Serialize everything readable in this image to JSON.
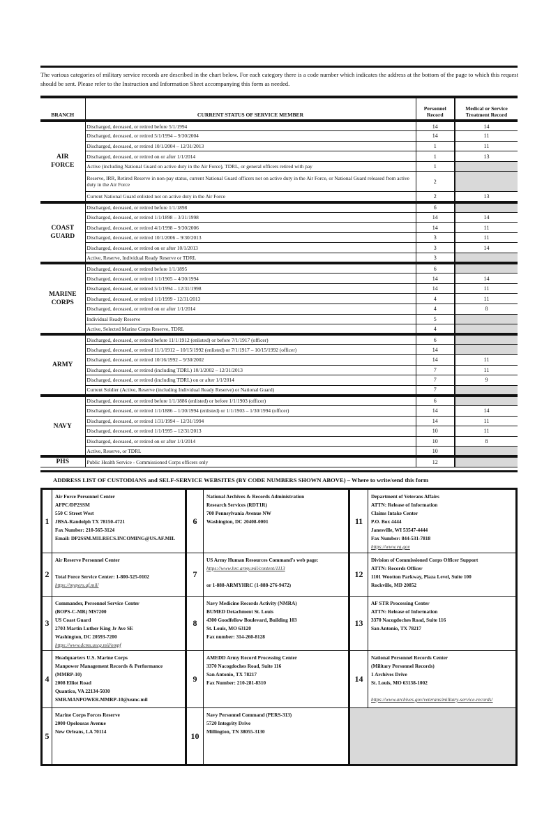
{
  "intro": "The various categories of military service records are described in the chart below.  For each category there is a code number which indicates the address at the bottom of the page to which this request should be sent.  Please refer to the Instruction and Information Sheet accompanying this form as needed.",
  "headers": {
    "branch": "BRANCH",
    "status": "CURRENT STATUS OF SERVICE MEMBER",
    "personnel": "Personnel Record",
    "medical": "Medical or Service Treatment Record"
  },
  "branches": [
    {
      "name": "AIR FORCE",
      "rows": [
        [
          "Discharged, deceased, or retired before 5/1/1994",
          "14",
          "14"
        ],
        [
          "Discharged, deceased, or retired 5/1/1994 – 9/30/2004",
          "14",
          "11"
        ],
        [
          "Discharged, deceased, or retired 10/1/2004 – 12/31/2013",
          "1",
          "11"
        ],
        [
          "Discharged, deceased, or retired on or after 1/1/2014",
          "1",
          "13"
        ],
        [
          "Active (including National Guard on active duty in the Air Force), TDRL, or general officers retired with pay",
          "1",
          ""
        ],
        [
          "Reserve, IRR, Retired Reserve in non-pay status, current National Guard officers not on active duty in the Air Force, or National Guard released from active duty in the Air Force",
          "2",
          ""
        ],
        [
          "Current National Guard enlisted not on active duty in the Air Force",
          "2",
          "13"
        ]
      ]
    },
    {
      "name": "COAST GUARD",
      "rows": [
        [
          "Discharged, deceased, or retired before 1/1/1898",
          "6",
          ""
        ],
        [
          "Discharged, deceased, or retired 1/1/1898 – 3/31/1998",
          "14",
          "14"
        ],
        [
          "Discharged, deceased, or retired 4/1/1998 – 9/30/2006",
          "14",
          "11"
        ],
        [
          "Discharged, deceased, or retired 10/1/2006  – 9/30/2013",
          "3",
          "11"
        ],
        [
          "Discharged, deceased, or retired on or after 10/1/2013",
          "3",
          "14"
        ],
        [
          "Active, Reserve, Individual Ready Reserve or TDRL",
          "3",
          ""
        ]
      ]
    },
    {
      "name": "MARINE CORPS",
      "rows": [
        [
          "Discharged, deceased, or retired before 1/1/1895",
          "6",
          ""
        ],
        [
          "Discharged, deceased, or retired 1/1/1905 – 4/30/1994",
          "14",
          "14"
        ],
        [
          "Discharged, deceased, or retired 5/1/1994 – 12/31/1998",
          "14",
          "11"
        ],
        [
          "Discharged, deceased, or retired 1/1/1999 - 12/31/2013",
          "4",
          "11"
        ],
        [
          "Discharged, deceased, or retired on or after 1/1/2014",
          "4",
          "8"
        ],
        [
          "Individual Ready Reserve",
          "5",
          ""
        ],
        [
          "Active, Selected Marine Corps Reserve, TDRL",
          "4",
          ""
        ]
      ]
    },
    {
      "name": "ARMY",
      "rows": [
        [
          "Discharged, deceased, or retired before 11/1/1912 (enlisted) or before 7/1/1917 (officer)",
          "6",
          ""
        ],
        [
          "Discharged, deceased, or retired 11/1/1912 – 10/15/1992 (enlisted) or 7/1/1917 – 10/15/1992 (officer)",
          "14",
          ""
        ],
        [
          "Discharged, deceased, or retired 10/16/1992 – 9/30/2002",
          "14",
          "11"
        ],
        [
          "Discharged, deceased, or retired (including TDRL) 10/1/2002 – 12/31/2013",
          "7",
          "11"
        ],
        [
          "Discharged, deceased, or retired (including TDRL) on or after 1/1/2014",
          "7",
          "9"
        ],
        [
          "Current Soldier (Active, Reserve (including Individual Ready Reserve) or National Guard)",
          "7",
          ""
        ]
      ]
    },
    {
      "name": "NAVY",
      "rows": [
        [
          "Discharged, deceased, or retired before 1/1/1886 (enlisted) or before 1/1/1903 (officer)",
          "6",
          ""
        ],
        [
          "Discharged, deceased, or retired 1/1/1886 – 1/30/1994 (enlisted) or 1/1/1903 – 1/30/1994 (officer)",
          "14",
          "14"
        ],
        [
          "Discharged, deceased, or retired 1/31/1994 – 12/31/1994",
          "14",
          "11"
        ],
        [
          "Discharged, deceased, or retired 1/1/1995 – 12/31/2013",
          "10",
          "11"
        ],
        [
          "Discharged, deceased, or retired on or after 1/1/2014",
          "10",
          "8"
        ],
        [
          "Active, Reserve, or TDRL",
          "10",
          ""
        ]
      ]
    },
    {
      "name": "PHS",
      "rows": [
        [
          "Public Health Service - Commissioned Corps officers only",
          "12",
          ""
        ]
      ]
    }
  ],
  "address_title": "ADDRESS LIST OF CUSTODIANS and SELF-SERVICE WEBSITES (BY CODE NUMBERS SHOWN ABOVE) – Where to write/send this form",
  "addresses": [
    {
      "code": "1",
      "lines": [
        "Air Force Personnel Center",
        "AFPC/DP2SSM",
        "550 C Street West",
        "JBSA-Randolph TX  78150-4721",
        "Fax Number:  210-565-3124",
        "Email:  DP2SSM.MILRECS.INCOMING@US.AF.MIL"
      ],
      "link": ""
    },
    {
      "code": "6",
      "lines": [
        "National Archives & Records Administration",
        "Research Services (RDT1R)",
        "700 Pennsylvania Avenue NW",
        "Washington, DC  20408-0001"
      ],
      "link": ""
    },
    {
      "code": "11",
      "lines": [
        "Department of Veterans Affairs",
        "ATTN:  Release of Information",
        "Claims Intake Center",
        "P.O. Box 4444",
        "Janesville, WI  53547-4444",
        "Fax Number:  844-531-7818"
      ],
      "link": "https://www.va.gov"
    },
    {
      "code": "2",
      "lines": [
        "Air Reserve Personnel Center",
        "",
        "Total Force Service Center: 1-800-525-0102"
      ],
      "link": "https://mypers.af.mil/"
    },
    {
      "code": "7",
      "lines": [
        "US Army Human Resources Command's web page:"
      ],
      "link": "https://www.hrc.army.mil/content/1113",
      "after": [
        "",
        "or 1-888-ARMYHRC (1-888-276-9472)"
      ]
    },
    {
      "code": "12",
      "lines": [
        "Division of Commissioned Corps Officer Support",
        "ATTN:  Records Officer",
        "1101 Wootton Parkway, Plaza Level, Suite 100",
        "Rockville, MD  20852"
      ],
      "link": ""
    },
    {
      "code": "3",
      "lines": [
        "Commander,  Personnel Service Center",
        "(BOPS-C-MR) MS7200",
        "US Coast Guard",
        "2703 Martin Luther King Jr Ave SE",
        "Washington, DC  20593-7200"
      ],
      "link": "https://www.dcms.uscg.mil/ompf"
    },
    {
      "code": "8",
      "lines": [
        "Navy Medicine Records Activity (NMRA)",
        "BUMED Detachment St. Louis",
        "4300 Goodfellow Boulevard, Building 103",
        "St. Louis, MO  63120",
        "Fax number:  314-260-8128"
      ],
      "link": ""
    },
    {
      "code": "13",
      "lines": [
        "AF STR Processing Center",
        "ATTN:  Release of Information",
        "3370 Nacogdoches Road, Suite 116",
        "San Antonio, TX  78217"
      ],
      "link": ""
    },
    {
      "code": "4",
      "lines": [
        "Headquarters U.S. Marine Corps",
        "Manpower Management Records & Performance",
        "(MMRP-10)",
        "2008 Elliot Road",
        "Quantico, VA  22134-5030",
        "SMB.MANPOWER.MMRP-10@usmc.mil"
      ],
      "link": ""
    },
    {
      "code": "9",
      "lines": [
        "AMEDD Army Record Processing Center",
        "3370 Nacogdoches Road, Suite 116",
        "San Antonio, TX  78217",
        "Fax Number:  210-281-8310"
      ],
      "link": ""
    },
    {
      "code": "14",
      "lines": [
        "National Personnel Records Center",
        "(Military Personnel Records)",
        "1 Archives Drive",
        "St. Louis, MO  63138-1002",
        ""
      ],
      "link": "https://www.archives.gov/veterans/military-service-records/"
    },
    {
      "code": "5",
      "lines": [
        "Marine Corps Forces Reserve",
        "2000 Opelousas Avenue",
        "New Orleans, LA  70114"
      ],
      "link": ""
    },
    {
      "code": "10",
      "lines": [
        "Navy Personnel Command (PERS-313)",
        "5720 Integrity Drive",
        "Millington, TN  38055-3130"
      ],
      "link": ""
    }
  ]
}
